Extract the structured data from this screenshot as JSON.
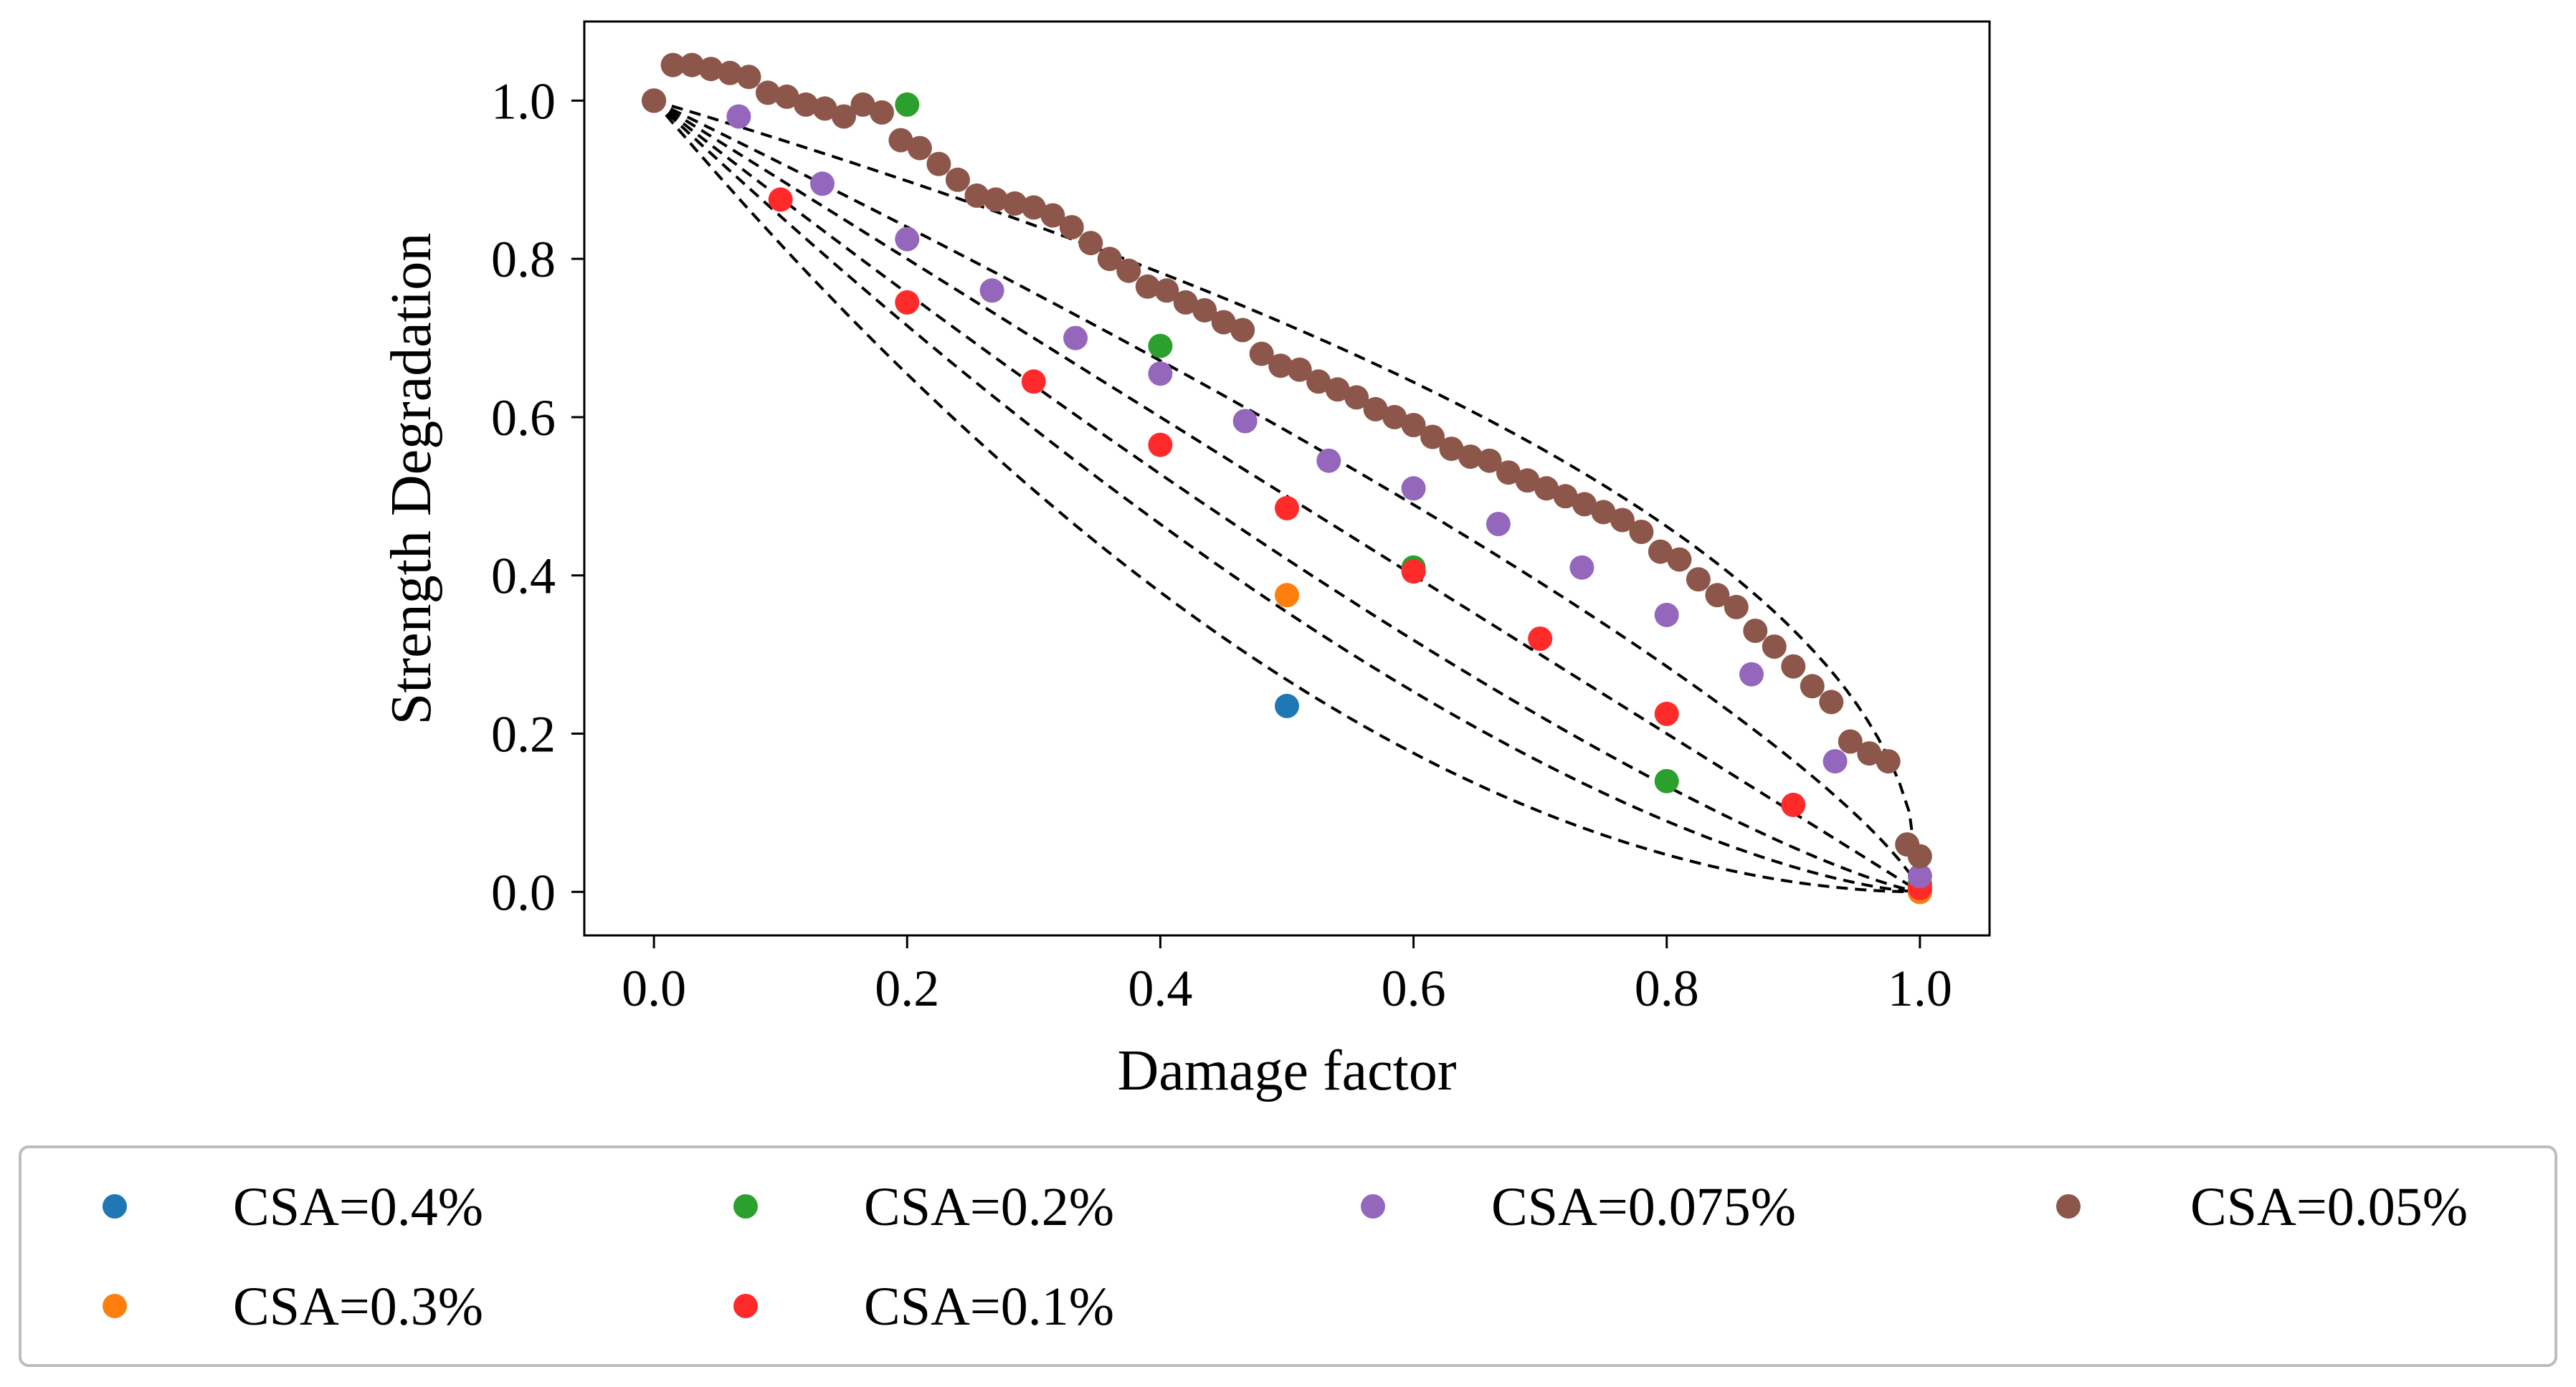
{
  "chart_data": {
    "type": "scatter",
    "title": "",
    "xlabel": "Damage factor",
    "ylabel": "Strength Degradation",
    "xlim": [
      -0.055,
      1.055
    ],
    "ylim": [
      -0.055,
      1.1
    ],
    "xticks": [
      0.0,
      0.2,
      0.4,
      0.6,
      0.8,
      1.0
    ],
    "xtick_labels": [
      "0.0",
      "0.2",
      "0.4",
      "0.6",
      "0.8",
      "1.0"
    ],
    "yticks": [
      0.0,
      0.2,
      0.4,
      0.6,
      0.8,
      1.0
    ],
    "ytick_labels": [
      "0.0",
      "0.2",
      "0.4",
      "0.6",
      "0.8",
      "1.0"
    ],
    "grid": false,
    "legend_position": "bottom",
    "series": [
      {
        "name": "CSA=0.4%",
        "color": "#1f77b4",
        "x": [
          0.0,
          0.5,
          1.0
        ],
        "y": [
          1.0,
          0.235,
          0.0
        ]
      },
      {
        "name": "CSA=0.3%",
        "color": "#ff7f0e",
        "x": [
          0.0,
          0.5,
          1.0
        ],
        "y": [
          1.0,
          0.375,
          0.0
        ]
      },
      {
        "name": "CSA=0.2%",
        "color": "#2ca02c",
        "x": [
          0.0,
          0.2,
          0.4,
          0.6,
          0.8,
          1.0
        ],
        "y": [
          1.0,
          0.995,
          0.69,
          0.41,
          0.14,
          0.01
        ]
      },
      {
        "name": "CSA=0.1%",
        "color": "#ff2a2a",
        "x": [
          0.0,
          0.1,
          0.2,
          0.3,
          0.4,
          0.5,
          0.6,
          0.7,
          0.8,
          0.9,
          1.0
        ],
        "y": [
          1.0,
          0.875,
          0.745,
          0.645,
          0.565,
          0.485,
          0.405,
          0.32,
          0.225,
          0.11,
          0.005
        ]
      },
      {
        "name": "CSA=0.075%",
        "color": "#9467bd",
        "x": [
          0.0,
          0.067,
          0.133,
          0.2,
          0.267,
          0.333,
          0.4,
          0.467,
          0.533,
          0.6,
          0.667,
          0.733,
          0.8,
          0.867,
          0.933,
          1.0
        ],
        "y": [
          1.0,
          0.98,
          0.895,
          0.825,
          0.76,
          0.7,
          0.655,
          0.595,
          0.545,
          0.51,
          0.465,
          0.41,
          0.35,
          0.275,
          0.165,
          0.02
        ]
      },
      {
        "name": "CSA=0.05%",
        "color": "#8c564b",
        "x": [
          0.0,
          0.015,
          0.03,
          0.045,
          0.06,
          0.075,
          0.09,
          0.105,
          0.12,
          0.135,
          0.15,
          0.165,
          0.18,
          0.195,
          0.21,
          0.225,
          0.24,
          0.255,
          0.27,
          0.285,
          0.3,
          0.315,
          0.33,
          0.345,
          0.36,
          0.375,
          0.39,
          0.405,
          0.42,
          0.435,
          0.45,
          0.465,
          0.48,
          0.495,
          0.51,
          0.525,
          0.54,
          0.555,
          0.57,
          0.585,
          0.6,
          0.615,
          0.63,
          0.645,
          0.66,
          0.675,
          0.69,
          0.705,
          0.72,
          0.735,
          0.75,
          0.765,
          0.78,
          0.795,
          0.81,
          0.825,
          0.84,
          0.855,
          0.87,
          0.885,
          0.9,
          0.915,
          0.93,
          0.945,
          0.96,
          0.975,
          0.99,
          1.0
        ],
        "y": [
          1.0,
          1.045,
          1.045,
          1.04,
          1.035,
          1.03,
          1.01,
          1.005,
          0.995,
          0.99,
          0.98,
          0.995,
          0.985,
          0.95,
          0.94,
          0.92,
          0.9,
          0.88,
          0.875,
          0.87,
          0.865,
          0.855,
          0.84,
          0.82,
          0.8,
          0.785,
          0.765,
          0.76,
          0.745,
          0.735,
          0.72,
          0.71,
          0.68,
          0.665,
          0.66,
          0.645,
          0.635,
          0.625,
          0.61,
          0.6,
          0.59,
          0.575,
          0.56,
          0.55,
          0.545,
          0.53,
          0.52,
          0.51,
          0.5,
          0.49,
          0.48,
          0.47,
          0.455,
          0.43,
          0.42,
          0.395,
          0.375,
          0.36,
          0.33,
          0.31,
          0.285,
          0.26,
          0.24,
          0.19,
          0.175,
          0.165,
          0.06,
          0.045
        ]
      }
    ],
    "fit_curves_label": "dashed fit curves",
    "fit_curve_exponents": [
      0.48,
      0.78,
      1.0,
      1.25,
      1.5,
      1.9
    ]
  },
  "legend": {
    "entries": [
      {
        "label": "CSA=0.4%",
        "color": "#1f77b4"
      },
      {
        "label": "CSA=0.2%",
        "color": "#2ca02c"
      },
      {
        "label": "CSA=0.075%",
        "color": "#9467bd"
      },
      {
        "label": "CSA=0.05%",
        "color": "#8c564b"
      },
      {
        "label": "CSA=0.3%",
        "color": "#ff7f0e"
      },
      {
        "label": "CSA=0.1%",
        "color": "#ff2a2a"
      }
    ]
  }
}
